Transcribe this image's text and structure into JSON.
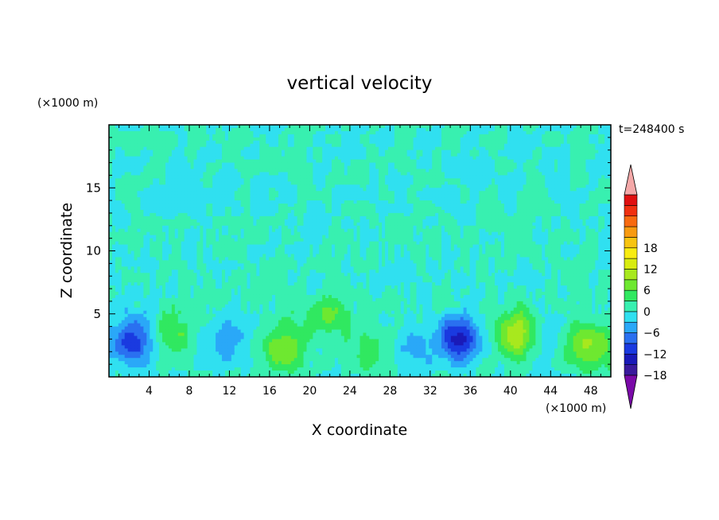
{
  "chart_data": {
    "type": "heatmap",
    "title": "vertical velocity",
    "time_label": "t=248400 s",
    "xlabel": "X coordinate",
    "ylabel": "Z coordinate",
    "x_unit_label": "(×1000 m)",
    "y_unit_label": "(×1000 m)",
    "xlim": [
      0,
      50
    ],
    "ylim": [
      0,
      20
    ],
    "x_ticks": [
      "4",
      "8",
      "12",
      "16",
      "20",
      "24",
      "28",
      "32",
      "36",
      "40",
      "44",
      "48"
    ],
    "x_tick_values": [
      4,
      8,
      12,
      16,
      20,
      24,
      28,
      32,
      36,
      40,
      44,
      48
    ],
    "y_ticks": [
      "5",
      "10",
      "15"
    ],
    "y_tick_values": [
      5,
      10,
      15
    ],
    "colorbar": {
      "min": -21,
      "max": 21,
      "step": 3,
      "tick_labels": [
        "18",
        "12",
        "6",
        "0",
        "−6",
        "−12",
        "−18"
      ],
      "tick_values": [
        18,
        12,
        6,
        0,
        -6,
        -12,
        -18
      ],
      "colors": [
        "#7a0aa8",
        "#3a1a9c",
        "#1a1ab8",
        "#1a3ae0",
        "#2a70f0",
        "#2aa8f8",
        "#30e0f0",
        "#38f0b0",
        "#30e860",
        "#6ee830",
        "#a8e81e",
        "#d8ec10",
        "#f8ec10",
        "#f8c410",
        "#f89a10",
        "#f86a10",
        "#f03010",
        "#e01010",
        "#f4a8a8"
      ]
    },
    "features": [
      {
        "x": 2.5,
        "z": 2.8,
        "value": -11
      },
      {
        "x": 6.5,
        "z": 3.5,
        "value": 6
      },
      {
        "x": 11.5,
        "z": 2.6,
        "value": -5
      },
      {
        "x": 17.5,
        "z": 2.4,
        "value": 9
      },
      {
        "x": 22.0,
        "z": 4.8,
        "value": 6
      },
      {
        "x": 26.0,
        "z": 1.8,
        "value": 5
      },
      {
        "x": 30.5,
        "z": 2.2,
        "value": -3
      },
      {
        "x": 34.8,
        "z": 3.0,
        "value": -13
      },
      {
        "x": 40.5,
        "z": 3.4,
        "value": 12
      },
      {
        "x": 44.2,
        "z": 2.8,
        "value": -4
      },
      {
        "x": 46.5,
        "z": 2.8,
        "value": 6
      },
      {
        "x": 48.5,
        "z": 2.2,
        "value": 7
      }
    ]
  }
}
